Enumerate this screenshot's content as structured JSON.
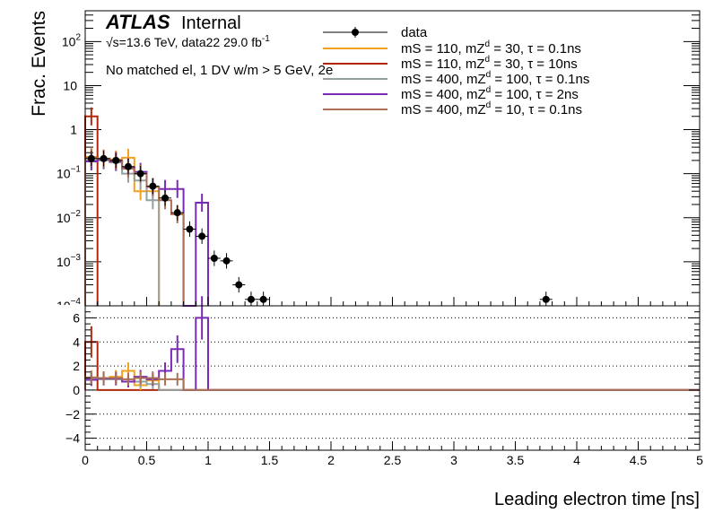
{
  "header": {
    "atlas": "ATLAS",
    "internal": "Internal",
    "energy": "√s=13.6 TeV, data22 29.0 fb",
    "lumi_exp": "-1",
    "selection": "No matched el, 1 DV w/m > 5 GeV, 2e"
  },
  "axes": {
    "ylabel": "Frac. Events",
    "xlabel": "Leading electron time [ns]",
    "x_ticks": [
      "0",
      "0.5",
      "1",
      "1.5",
      "2",
      "2.5",
      "3",
      "3.5",
      "4",
      "4.5",
      "5"
    ],
    "top_y_ticks": [
      {
        "v": 100,
        "base": "10",
        "exp": "2"
      },
      {
        "v": 10,
        "base": "10",
        "exp": ""
      },
      {
        "v": 1,
        "base": "1",
        "exp": ""
      },
      {
        "v": 0.1,
        "base": "10",
        "exp": "−1"
      },
      {
        "v": 0.01,
        "base": "10",
        "exp": "−2"
      },
      {
        "v": 0.001,
        "base": "10",
        "exp": "−3"
      }
    ],
    "bottom_y_ticks": [
      "6",
      "4",
      "2",
      "0",
      "−2",
      "−4"
    ]
  },
  "legend": {
    "data_label": "data",
    "entries": [
      {
        "pre": "mS = 110, mZ",
        "sub": "d",
        "post": " = 30, τ = 0.1ns",
        "color": "#f2a11e"
      },
      {
        "pre": "mS = 110, mZ",
        "sub": "d",
        "post": " = 30, τ = 10ns",
        "color": "#b3280c"
      },
      {
        "pre": "mS = 400, mZ",
        "sub": "d",
        "post": " = 100, τ = 0.1ns",
        "color": "#92a0a2"
      },
      {
        "pre": "mS = 400, mZ",
        "sub": "d",
        "post": " = 100, τ = 2ns",
        "color": "#7b2bb3"
      },
      {
        "pre": "mS = 400, mZ",
        "sub": "d",
        "post": " = 10, τ = 0.1ns",
        "color": "#a97055"
      }
    ]
  },
  "chart_data": [
    {
      "type": "line",
      "panel": "top",
      "ylabel": "Frac. Events",
      "xlim": [
        0,
        5
      ],
      "ylim": [
        0.0001,
        500
      ],
      "ylog": true,
      "data_points": [
        {
          "x": 0.05,
          "y": 0.22
        },
        {
          "x": 0.15,
          "y": 0.22
        },
        {
          "x": 0.25,
          "y": 0.2
        },
        {
          "x": 0.35,
          "y": 0.145
        },
        {
          "x": 0.45,
          "y": 0.1
        },
        {
          "x": 0.55,
          "y": 0.052
        },
        {
          "x": 0.65,
          "y": 0.028
        },
        {
          "x": 0.75,
          "y": 0.013
        },
        {
          "x": 0.85,
          "y": 0.0055
        },
        {
          "x": 0.95,
          "y": 0.0038
        },
        {
          "x": 1.05,
          "y": 0.0012
        },
        {
          "x": 1.15,
          "y": 0.00105
        },
        {
          "x": 1.25,
          "y": 0.0003
        },
        {
          "x": 1.35,
          "y": 0.00014
        },
        {
          "x": 1.45,
          "y": 0.00014
        },
        {
          "x": 3.75,
          "y": 0.00014
        }
      ],
      "series": [
        {
          "name": "mS = 110, mZd = 30, τ = 0.1ns",
          "color": "#f2a11e",
          "edges": [
            0,
            0.1,
            0.2,
            0.3,
            0.4,
            0.5,
            0.6
          ],
          "values": [
            0.24,
            0.22,
            0.21,
            0.23,
            0.04,
            0.04
          ]
        },
        {
          "name": "mS = 110, mZd = 30, τ = 10ns",
          "color": "#b3280c",
          "edges": [
            0,
            0.1
          ],
          "values": [
            2.0
          ]
        },
        {
          "name": "mS = 400, mZd = 100, τ = 0.1ns",
          "color": "#92a0a2",
          "edges": [
            0,
            0.1,
            0.2,
            0.3,
            0.4,
            0.5,
            0.6
          ],
          "values": [
            0.2,
            0.2,
            0.18,
            0.1,
            0.07,
            0.025
          ]
        },
        {
          "name": "mS = 400, mZd = 100, τ = 2ns",
          "color": "#7b2bb3",
          "edges": [
            0,
            0.1,
            0.2,
            0.3,
            0.4,
            0.5,
            0.6,
            0.7,
            0.8,
            0.9,
            1.0
          ],
          "values": [
            0.19,
            0.21,
            0.19,
            0.14,
            0.11,
            0.05,
            0.045,
            0.045,
            0.0001,
            0.022
          ]
        },
        {
          "name": "mS = 400, mZd = 10, τ = 0.1ns",
          "color": "#a97055",
          "edges": [
            0,
            0.1,
            0.2,
            0.3,
            0.4,
            0.5,
            0.6,
            0.7,
            0.8
          ],
          "values": [
            0.23,
            0.22,
            0.2,
            0.13,
            0.1,
            0.05,
            0.025,
            0.012
          ]
        }
      ]
    },
    {
      "type": "line",
      "panel": "ratio",
      "xlim": [
        0,
        5
      ],
      "ylim": [
        -5,
        7
      ],
      "grid_y": [
        6,
        4,
        2,
        0,
        -2,
        -4
      ],
      "series": [
        {
          "name": "mS = 110, mZd = 30, τ = 0.1ns",
          "color": "#f2a11e",
          "edges": [
            0,
            0.1,
            0.2,
            0.3,
            0.4,
            0.5,
            0.6,
            5.0
          ],
          "values": [
            1.05,
            1.0,
            1.1,
            1.6,
            0.4,
            0.8,
            0
          ]
        },
        {
          "name": "mS = 110, mZd = 30, τ = 10ns",
          "color": "#b3280c",
          "edges": [
            0,
            0.1,
            5.0
          ],
          "values": [
            4.0,
            0
          ]
        },
        {
          "name": "mS = 400, mZd = 100, τ = 0.1ns",
          "color": "#92a0a2",
          "edges": [
            0,
            0.1,
            0.2,
            0.3,
            0.4,
            0.5,
            0.6,
            5.0
          ],
          "values": [
            0.9,
            0.9,
            0.9,
            0.7,
            0.7,
            0.5,
            0
          ]
        },
        {
          "name": "mS = 400, mZd = 100, τ = 2ns",
          "color": "#7b2bb3",
          "edges": [
            0,
            0.1,
            0.2,
            0.3,
            0.4,
            0.5,
            0.6,
            0.7,
            0.8,
            0.9,
            1.0,
            5.0
          ],
          "values": [
            0.85,
            0.95,
            0.95,
            0.7,
            1.1,
            0.9,
            1.6,
            3.4,
            0,
            6.0,
            0
          ]
        },
        {
          "name": "mS = 400, mZd = 10, τ = 0.1ns",
          "color": "#a97055",
          "edges": [
            0,
            0.1,
            0.2,
            0.3,
            0.4,
            0.5,
            0.6,
            0.7,
            0.8,
            5.0
          ],
          "values": [
            1.05,
            1.0,
            1.0,
            0.9,
            1.0,
            1.0,
            0.9,
            0.9,
            0
          ]
        }
      ]
    }
  ]
}
